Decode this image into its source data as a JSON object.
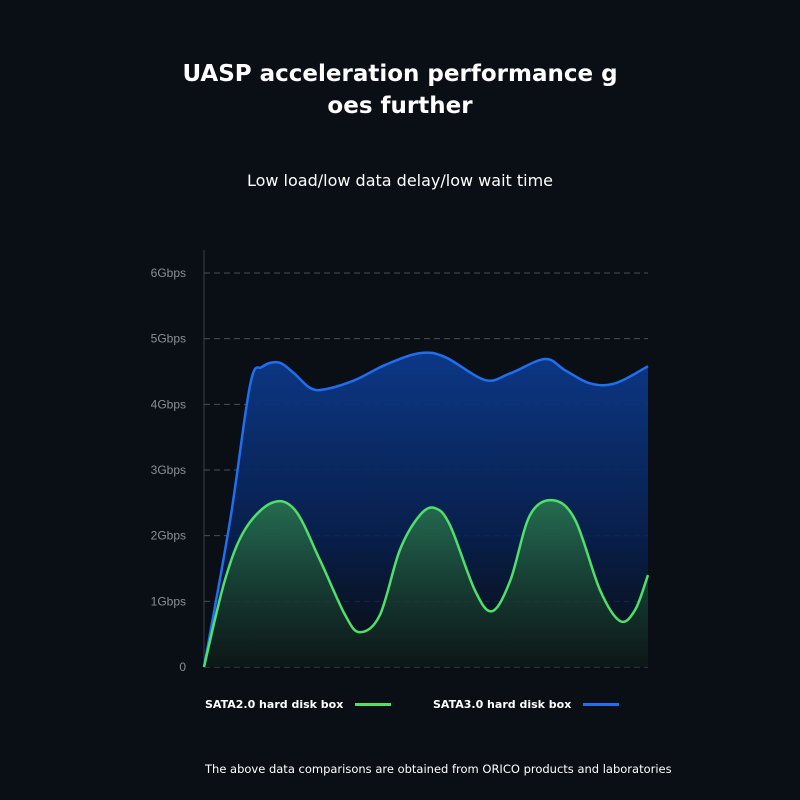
{
  "title_line1": "UASP acceleration performance g",
  "title_line2": "oes further",
  "subtitle": "Low load/low data delay/low wait time",
  "footnote": "The above data comparisons are obtained from ORICO products and laboratories",
  "chart_data": {
    "type": "area",
    "title": "UASP acceleration performance goes further",
    "xlabel": "",
    "ylabel": "",
    "y_ticks": [
      "0",
      "1Gbps",
      "2Gbps",
      "3Gbps",
      "4Gbps",
      "5Gbps",
      "6Gbps"
    ],
    "ylim": [
      0,
      6
    ],
    "xlim": [
      0,
      100
    ],
    "grid": true,
    "legend_position": "bottom",
    "series": [
      {
        "name": "SATA3.0 hard disk box",
        "color": "#1f6ff0",
        "x": [
          0,
          5.9,
          10.4,
          13.1,
          16.7,
          20.0,
          23.9,
          27.3,
          34.0,
          40.8,
          48.6,
          54.3,
          63.3,
          68.9,
          76.8,
          81.3,
          86.9,
          92.6,
          100
        ],
        "y": [
          0,
          2.24,
          4.3,
          4.57,
          4.64,
          4.49,
          4.25,
          4.23,
          4.37,
          4.6,
          4.78,
          4.72,
          4.37,
          4.47,
          4.69,
          4.52,
          4.32,
          4.32,
          4.58
        ]
      },
      {
        "name": "SATA2.0 hard disk box",
        "color": "#4fe06a",
        "x": [
          0,
          4.7,
          9.2,
          15.3,
          20.5,
          26.1,
          31.8,
          35.1,
          39.6,
          44.1,
          48.6,
          52.0,
          55.4,
          61.0,
          64.9,
          69.0,
          73.4,
          78.6,
          83.6,
          89.2,
          93.7,
          97.1,
          100
        ],
        "y": [
          0,
          1.32,
          2.09,
          2.5,
          2.39,
          1.63,
          0.79,
          0.53,
          0.79,
          1.78,
          2.31,
          2.42,
          2.16,
          1.17,
          0.85,
          1.32,
          2.31,
          2.54,
          2.24,
          1.17,
          0.7,
          0.87,
          1.4
        ]
      }
    ]
  }
}
